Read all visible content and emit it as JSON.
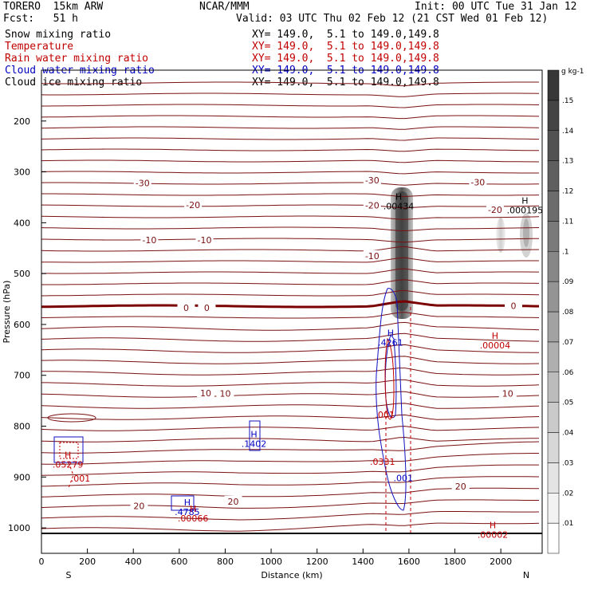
{
  "header": {
    "model": "TORERO  15km ARW",
    "center": "NCAR/MMM",
    "init": "Init: 00 UTC Tue 31 Jan 12",
    "fcst": "Fcst:   51 h",
    "valid": "Valid: 03 UTC Thu 02 Feb 12 (21 CST Wed 01 Feb 12)"
  },
  "fields": [
    {
      "label": "Snow mixing ratio",
      "xy": "XY= 149.0,  5.1 to 149.0,149.8",
      "color": "#000000",
      "xycolor": "#000000"
    },
    {
      "label": "Temperature",
      "xy": "XY= 149.0,  5.1 to 149.0,149.8",
      "color": "#c00000",
      "xycolor": "#c00000"
    },
    {
      "label": "Rain water mixing ratio",
      "xy": "XY= 149.0,  5.1 to 149.0,149.8",
      "color": "#c00000",
      "xycolor": "#c00000"
    },
    {
      "label": "Cloud water mixing ratio",
      "xy": "XY= 149.0,  5.1 to 149.0,149.8",
      "color": "#0000c0",
      "xycolor": "#0000c0"
    },
    {
      "label": "Cloud ice mixing ratio",
      "xy": "XY= 149.0,  5.1 to 149.0,149.8",
      "color": "#000000",
      "xycolor": "#000000"
    }
  ],
  "chart_data": {
    "type": "cross-section",
    "xlabel": "Distance (km)",
    "ylabel": "Pressure (hPa)",
    "xlim": [
      0,
      2180
    ],
    "ylim": [
      1050,
      100
    ],
    "x_ticks": [
      0,
      200,
      400,
      600,
      800,
      1000,
      1200,
      1400,
      1600,
      1800,
      2000
    ],
    "y_ticks": [
      200,
      300,
      400,
      500,
      600,
      700,
      800,
      900,
      1000
    ],
    "x_end_labels": {
      "left": "S",
      "right": "N"
    },
    "colorbar": {
      "unit": "g kg-1",
      "levels": [
        ".01",
        ".02",
        ".03",
        ".04",
        ".05",
        ".06",
        ".07",
        ".08",
        ".09",
        ".1",
        ".11",
        ".12",
        ".13",
        ".14",
        ".15"
      ]
    },
    "temperature_labels": [
      {
        "text": "-30",
        "x": 440,
        "p": 322
      },
      {
        "text": "-30",
        "x": 1440,
        "p": 316
      },
      {
        "text": "-30",
        "x": 1900,
        "p": 320
      },
      {
        "text": "-20",
        "x": 660,
        "p": 365
      },
      {
        "text": "-20",
        "x": 1440,
        "p": 366
      },
      {
        "text": "-20",
        "x": 1975,
        "p": 374
      },
      {
        "text": "-10",
        "x": 470,
        "p": 434
      },
      {
        "text": "-10",
        "x": 710,
        "p": 434
      },
      {
        "text": "-10",
        "x": 1440,
        "p": 465
      },
      {
        "text": "0",
        "x": 630,
        "p": 567
      },
      {
        "text": "0",
        "x": 720,
        "p": 567
      },
      {
        "text": "0",
        "x": 2055,
        "p": 563
      },
      {
        "text": "10",
        "x": 715,
        "p": 735
      },
      {
        "text": "10",
        "x": 800,
        "p": 736
      },
      {
        "text": "10",
        "x": 2030,
        "p": 736
      },
      {
        "text": "20",
        "x": 425,
        "p": 957
      },
      {
        "text": "20",
        "x": 835,
        "p": 948
      },
      {
        "text": "20",
        "x": 1825,
        "p": 918
      }
    ],
    "extrema_labels": [
      {
        "letter": "H",
        "value": ".00434",
        "x": 1555,
        "p": 364,
        "color": "#000000"
      },
      {
        "letter": "H",
        "value": ".000195",
        "x": 2105,
        "p": 372,
        "color": "#000000"
      },
      {
        "letter": "H",
        "value": ".4261",
        "x": 1520,
        "p": 632,
        "color": "#0000c0"
      },
      {
        "letter": "H",
        "value": ".00004",
        "x": 1975,
        "p": 638,
        "color": "#c00000"
      },
      {
        "letter": "H",
        "value": ".1402",
        "x": 925,
        "p": 831,
        "color": "#0000c0"
      },
      {
        "letter": "H",
        "value": ".05279",
        "x": 115,
        "p": 872,
        "color": "#c00000"
      },
      {
        "letter": "H",
        "value": ".4785",
        "x": 635,
        "p": 965,
        "color": "#0000c0"
      },
      {
        "letter": "H",
        "value": ".00066",
        "x": 660,
        "p": 978,
        "color": "#c00000"
      },
      {
        "letter": "H",
        "value": ".00002",
        "x": 1965,
        "p": 1010,
        "color": "#c00000"
      }
    ],
    "value_labels": [
      {
        "value": ".001",
        "x": 1495,
        "p": 777,
        "color": "#c00000"
      },
      {
        "value": ".0331",
        "x": 1485,
        "p": 870,
        "color": "#c00000"
      },
      {
        "value": ".001",
        "x": 1575,
        "p": 902,
        "color": "#0000c0"
      },
      {
        "value": ".001",
        "x": 170,
        "p": 903,
        "color": "#c00000"
      }
    ]
  }
}
